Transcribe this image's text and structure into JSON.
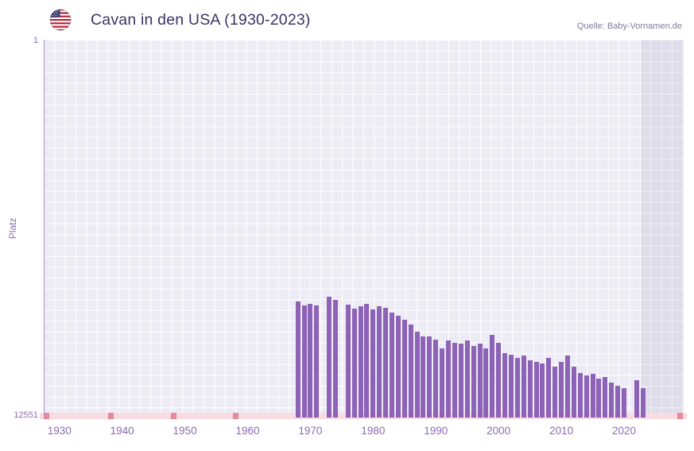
{
  "header": {
    "title": "Cavan in den USA (1930-2023)",
    "source": "Quelle: Baby-Vornamen.de",
    "flag_icon": "us-flag"
  },
  "chart_data": {
    "type": "bar",
    "title": "Cavan in den USA (1930-2023)",
    "xlabel": "",
    "ylabel": "Platz",
    "y_axis": {
      "top_label": "1",
      "bottom_label": "12551"
    },
    "y_range": [
      1,
      12551
    ],
    "y_inverted": true,
    "x_range": [
      1927.5,
      2029.5
    ],
    "x_ticks": [
      1930,
      1940,
      1950,
      1960,
      1970,
      1980,
      1990,
      2000,
      2010,
      2020
    ],
    "highlight_band_start": 2022.6,
    "no_data_marks": [
      1927.9,
      1938.2,
      1948.2,
      1958.1,
      2028.9
    ],
    "grid": true,
    "legend": false,
    "colors": {
      "title": "#3d3266",
      "source": "#837b9b",
      "axis": "#8a6bb0",
      "bar": "#8d63b8",
      "plot_bg": "#edebf4",
      "grid": "#ffffff",
      "strip_bg": "#f8dce2",
      "strip_mark": "#e8899a",
      "band": "rgba(116,101,158,0.10)",
      "axis_line": "#a78fc7"
    },
    "years": [
      1968,
      1969,
      1970,
      1971,
      1972,
      1973,
      1974,
      1975,
      1976,
      1977,
      1978,
      1979,
      1980,
      1981,
      1982,
      1983,
      1984,
      1985,
      1986,
      1987,
      1988,
      1989,
      1990,
      1991,
      1992,
      1993,
      1994,
      1995,
      1996,
      1997,
      1998,
      1999,
      2000,
      2001,
      2002,
      2003,
      2004,
      2005,
      2006,
      2007,
      2008,
      2009,
      2010,
      2011,
      2012,
      2013,
      2014,
      2015,
      2016,
      2017,
      2018,
      2019,
      2020,
      2021,
      2022,
      2023
    ],
    "ranks": [
      8700,
      8820,
      8760,
      8820,
      null,
      8540,
      8650,
      null,
      8800,
      8920,
      8860,
      8760,
      8950,
      8860,
      8900,
      9060,
      9160,
      9300,
      9460,
      9700,
      9860,
      9860,
      9950,
      10260,
      10000,
      10060,
      10100,
      10000,
      10160,
      10100,
      10260,
      9800,
      10060,
      10400,
      10460,
      10560,
      10500,
      10660,
      10700,
      10760,
      10560,
      10860,
      10700,
      10500,
      10860,
      11060,
      11160,
      11100,
      11260,
      11200,
      11400,
      11500,
      11560,
      null,
      11300,
      11560
    ]
  }
}
